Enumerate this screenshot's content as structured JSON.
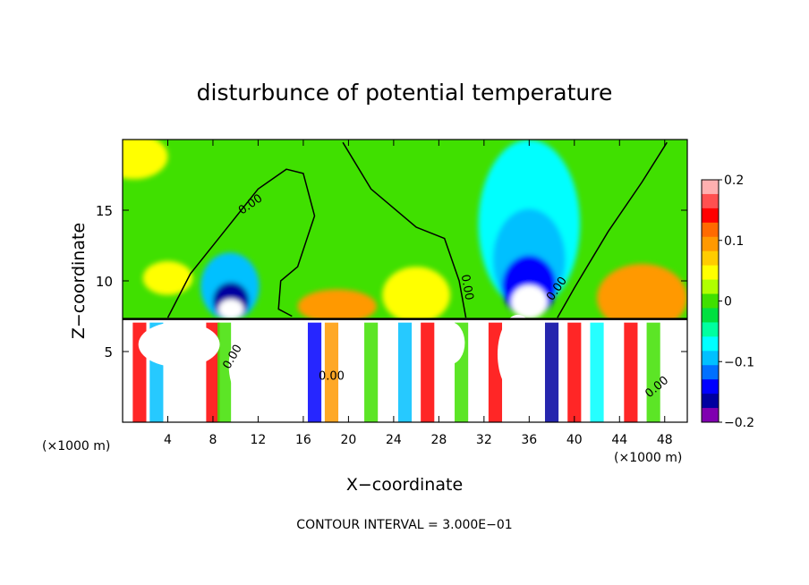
{
  "chart_data": {
    "type": "heatmap",
    "title": "disturbunce of potential temperature",
    "xlabel": "X−coordinate",
    "ylabel": "Z−coordinate",
    "x_unit_left": "(×1000 m)",
    "x_unit_right": "(×1000 m)",
    "xlim": [
      0,
      50
    ],
    "ylim": [
      0,
      20
    ],
    "x_ticks": [
      4,
      8,
      12,
      16,
      20,
      24,
      28,
      32,
      36,
      40,
      44,
      48
    ],
    "x_tick_labels": [
      "4",
      "8",
      "12",
      "16",
      "20",
      "24",
      "28",
      "32",
      "36",
      "40",
      "44",
      "48"
    ],
    "y_ticks": [
      5,
      10,
      15
    ],
    "y_tick_labels": [
      "5",
      "10",
      "15"
    ],
    "contour_interval_text": "CONTOUR INTERVAL = 3.000E−01",
    "contour_labels": [
      "0.00",
      "0.00",
      "0.00",
      "0.00",
      "0.00",
      "0.00"
    ],
    "colorbar": {
      "range": [
        -0.2,
        0.2
      ],
      "tick_values": [
        0.2,
        0.1,
        0,
        -0.1,
        -0.2
      ],
      "tick_labels": [
        "0.2",
        "0.1",
        "0",
        "−0.1",
        "−0.2"
      ],
      "colors": [
        "#ffb0b0",
        "#ff5050",
        "#ff0000",
        "#ff6a00",
        "#ff9900",
        "#ffcc00",
        "#ffff00",
        "#b0ff00",
        "#40e000",
        "#00e040",
        "#00ffa0",
        "#00ffff",
        "#00c0ff",
        "#0070ff",
        "#0000ff",
        "#0000a0",
        "#8000b0"
      ]
    },
    "upper_layer": {
      "background_color": "#40e000",
      "features": [
        {
          "kind": "blob",
          "x": 1,
          "z": 18.8,
          "rx": 3,
          "rz": 1.6,
          "color": "#ffff00"
        },
        {
          "kind": "blob",
          "x": 4,
          "z": 10.2,
          "rx": 2.2,
          "rz": 1.2,
          "color": "#ffff00"
        },
        {
          "kind": "blob",
          "x": 46,
          "z": 8.8,
          "rx": 4,
          "rz": 2.4,
          "color": "#ff9900"
        },
        {
          "kind": "blob",
          "x": 36,
          "z": 14,
          "rx": 4.5,
          "rz": 6,
          "color": "#00ffff"
        },
        {
          "kind": "blob",
          "x": 36,
          "z": 11.5,
          "rx": 3.2,
          "rz": 3.6,
          "color": "#00c0ff"
        },
        {
          "kind": "blob",
          "x": 36,
          "z": 9.6,
          "rx": 2.4,
          "rz": 2.2,
          "color": "#0000ff"
        },
        {
          "kind": "blob",
          "x": 36,
          "z": 8.5,
          "rx": 1.6,
          "rz": 1.2,
          "color": "#ffffff"
        },
        {
          "kind": "blob",
          "x": 9.5,
          "z": 9.6,
          "rx": 2.6,
          "rz": 2.4,
          "color": "#00c0ff"
        },
        {
          "kind": "blob",
          "x": 9.6,
          "z": 8.6,
          "rx": 1.6,
          "rz": 1.3,
          "color": "#0000a0"
        },
        {
          "kind": "blob",
          "x": 9.6,
          "z": 8.0,
          "rx": 1.1,
          "rz": 0.7,
          "color": "#ffffff"
        },
        {
          "kind": "blob",
          "x": 19,
          "z": 8.2,
          "rx": 3.5,
          "rz": 1.2,
          "color": "#ff9900"
        },
        {
          "kind": "blob",
          "x": 26,
          "z": 9,
          "rx": 3,
          "rz": 2,
          "color": "#ffff00"
        }
      ]
    },
    "lower_layer": {
      "background_color": "#ffffff",
      "bands": [
        {
          "x": 1.5,
          "color": "#ff0000"
        },
        {
          "x": 3,
          "color": "#00c0ff"
        },
        {
          "x": 8,
          "color": "#ff0000"
        },
        {
          "x": 9,
          "color": "#40e000"
        },
        {
          "x": 17,
          "color": "#0000ff"
        },
        {
          "x": 18.5,
          "color": "#ff9900"
        },
        {
          "x": 22,
          "color": "#40e000"
        },
        {
          "x": 25,
          "color": "#00c0ff"
        },
        {
          "x": 27,
          "color": "#ff0000"
        },
        {
          "x": 30,
          "color": "#40e000"
        },
        {
          "x": 33,
          "color": "#ff0000"
        },
        {
          "x": 38,
          "color": "#0000a0"
        },
        {
          "x": 40,
          "color": "#ff0000"
        },
        {
          "x": 42,
          "color": "#00ffff"
        },
        {
          "x": 45,
          "color": "#ff0000"
        },
        {
          "x": 47,
          "color": "#40e000"
        }
      ],
      "white_patches": [
        {
          "x": 12,
          "z": 4,
          "rx": 2.6,
          "rz": 3
        },
        {
          "x": 5,
          "z": 5.5,
          "rx": 3.6,
          "rz": 1.6
        },
        {
          "x": 35,
          "z": 4.8,
          "rx": 1.8,
          "rz": 2.8
        },
        {
          "x": 29,
          "z": 5.6,
          "rx": 1.3,
          "rz": 1.5
        }
      ]
    },
    "interface_z": 7.3
  }
}
